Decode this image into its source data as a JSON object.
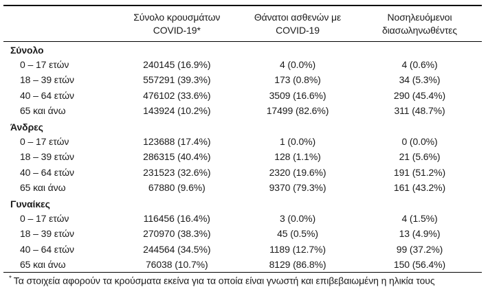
{
  "table": {
    "columns": [
      {
        "line1": "",
        "line2": ""
      },
      {
        "line1": "Σύνολο κρουσμάτων",
        "line2": "COVID-19*"
      },
      {
        "line1": "Θάνατοι ασθενών με",
        "line2": "COVID-19"
      },
      {
        "line1": "Νοσηλευόμενοι",
        "line2": "διασωληνωθέντες"
      }
    ],
    "sections": [
      {
        "label": "Σύνολο",
        "rows": [
          {
            "label": "0 – 17 ετών",
            "cases": "240145 (16.9%)",
            "deaths": "4 (0.0%)",
            "intubated": "4 (0.6%)"
          },
          {
            "label": "18 – 39 ετών",
            "cases": "557291 (39.3%)",
            "deaths": "173 (0.8%)",
            "intubated": "34 (5.3%)"
          },
          {
            "label": "40 – 64 ετών",
            "cases": "476102 (33.6%)",
            "deaths": "3509 (16.6%)",
            "intubated": "290 (45.4%)"
          },
          {
            "label": "65 και άνω",
            "cases": "143924 (10.2%)",
            "deaths": "17499 (82.6%)",
            "intubated": "311 (48.7%)"
          }
        ]
      },
      {
        "label": "Άνδρες",
        "rows": [
          {
            "label": "0 – 17 ετών",
            "cases": "123688 (17.4%)",
            "deaths": "1 (0.0%)",
            "intubated": "0 (0.0%)"
          },
          {
            "label": "18 – 39 ετών",
            "cases": "286315 (40.4%)",
            "deaths": "128 (1.1%)",
            "intubated": "21 (5.6%)"
          },
          {
            "label": "40 – 64 ετών",
            "cases": "231523 (32.6%)",
            "deaths": "2320 (19.6%)",
            "intubated": "191 (51.2%)"
          },
          {
            "label": "65 και άνω",
            "cases": "67880 (9.6%)",
            "deaths": "9370 (79.3%)",
            "intubated": "161 (43.2%)"
          }
        ]
      },
      {
        "label": "Γυναίκες",
        "rows": [
          {
            "label": "0 – 17 ετών",
            "cases": "116456 (16.4%)",
            "deaths": "3 (0.0%)",
            "intubated": "4 (1.5%)"
          },
          {
            "label": "18 – 39 ετών",
            "cases": "270970 (38.3%)",
            "deaths": "45 (0.5%)",
            "intubated": "13 (4.9%)"
          },
          {
            "label": "40 – 64 ετών",
            "cases": "244564 (34.5%)",
            "deaths": "1189 (12.7%)",
            "intubated": "99 (37.2%)"
          },
          {
            "label": "65 και άνω",
            "cases": "76038 (10.7%)",
            "deaths": "8129 (86.8%)",
            "intubated": "150 (56.4%)"
          }
        ]
      }
    ],
    "footnote": {
      "marker": "*",
      "text": "Τα στοιχεία αφορούν τα κρούσματα εκείνα για τα οποία είναι γνωστή και επιβεβαιωμένη η ηλικία τους"
    }
  },
  "colors": {
    "text": "#1a1a1a",
    "rule": "#000000",
    "background": "#ffffff"
  }
}
